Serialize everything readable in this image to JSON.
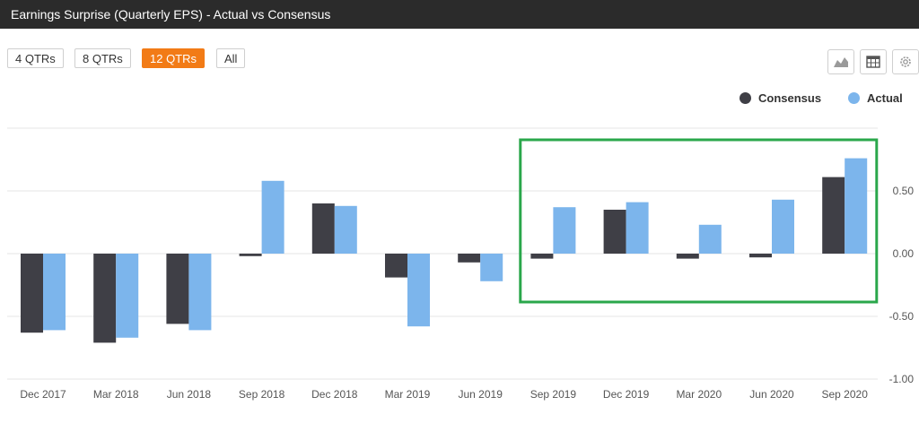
{
  "header": {
    "title": "Earnings Surprise (Quarterly EPS) - Actual vs Consensus"
  },
  "range_buttons": [
    "4 QTRs",
    "8 QTRs",
    "12 QTRs",
    "All"
  ],
  "active_range": "12 QTRs",
  "toolbar": {
    "icons": [
      "area-chart-icon",
      "table-icon",
      "gear-icon"
    ]
  },
  "colors": {
    "consensus": "#3f3f46",
    "actual": "#7cb5ec",
    "highlight": "#2aa74b",
    "active_button": "#f27b16"
  },
  "chart_data": {
    "type": "bar",
    "title": "",
    "xlabel": "",
    "ylabel": "",
    "categories": [
      "Dec 2017",
      "Mar 2018",
      "Jun 2018",
      "Sep 2018",
      "Dec 2018",
      "Mar 2019",
      "Jun 2019",
      "Sep 2019",
      "Dec 2019",
      "Mar 2020",
      "Jun 2020",
      "Sep 2020"
    ],
    "series": [
      {
        "name": "Consensus",
        "values": [
          -0.63,
          -0.71,
          -0.56,
          -0.02,
          0.4,
          -0.19,
          -0.07,
          -0.04,
          0.35,
          -0.04,
          -0.03,
          0.61
        ]
      },
      {
        "name": "Actual",
        "values": [
          -0.61,
          -0.67,
          -0.61,
          0.58,
          0.38,
          -0.58,
          -0.22,
          0.37,
          0.41,
          0.23,
          0.43,
          0.76
        ]
      }
    ],
    "yticks": [
      0.5,
      0.0,
      -0.5,
      -1.0
    ],
    "ytick_labels": [
      "0.50",
      "0.00",
      "-0.50",
      "-1.00"
    ],
    "ylim": [
      -1.0,
      1.0
    ],
    "grid": true,
    "legend_position": "top-right",
    "highlight_range": [
      "Sep 2019",
      "Sep 2020"
    ]
  }
}
